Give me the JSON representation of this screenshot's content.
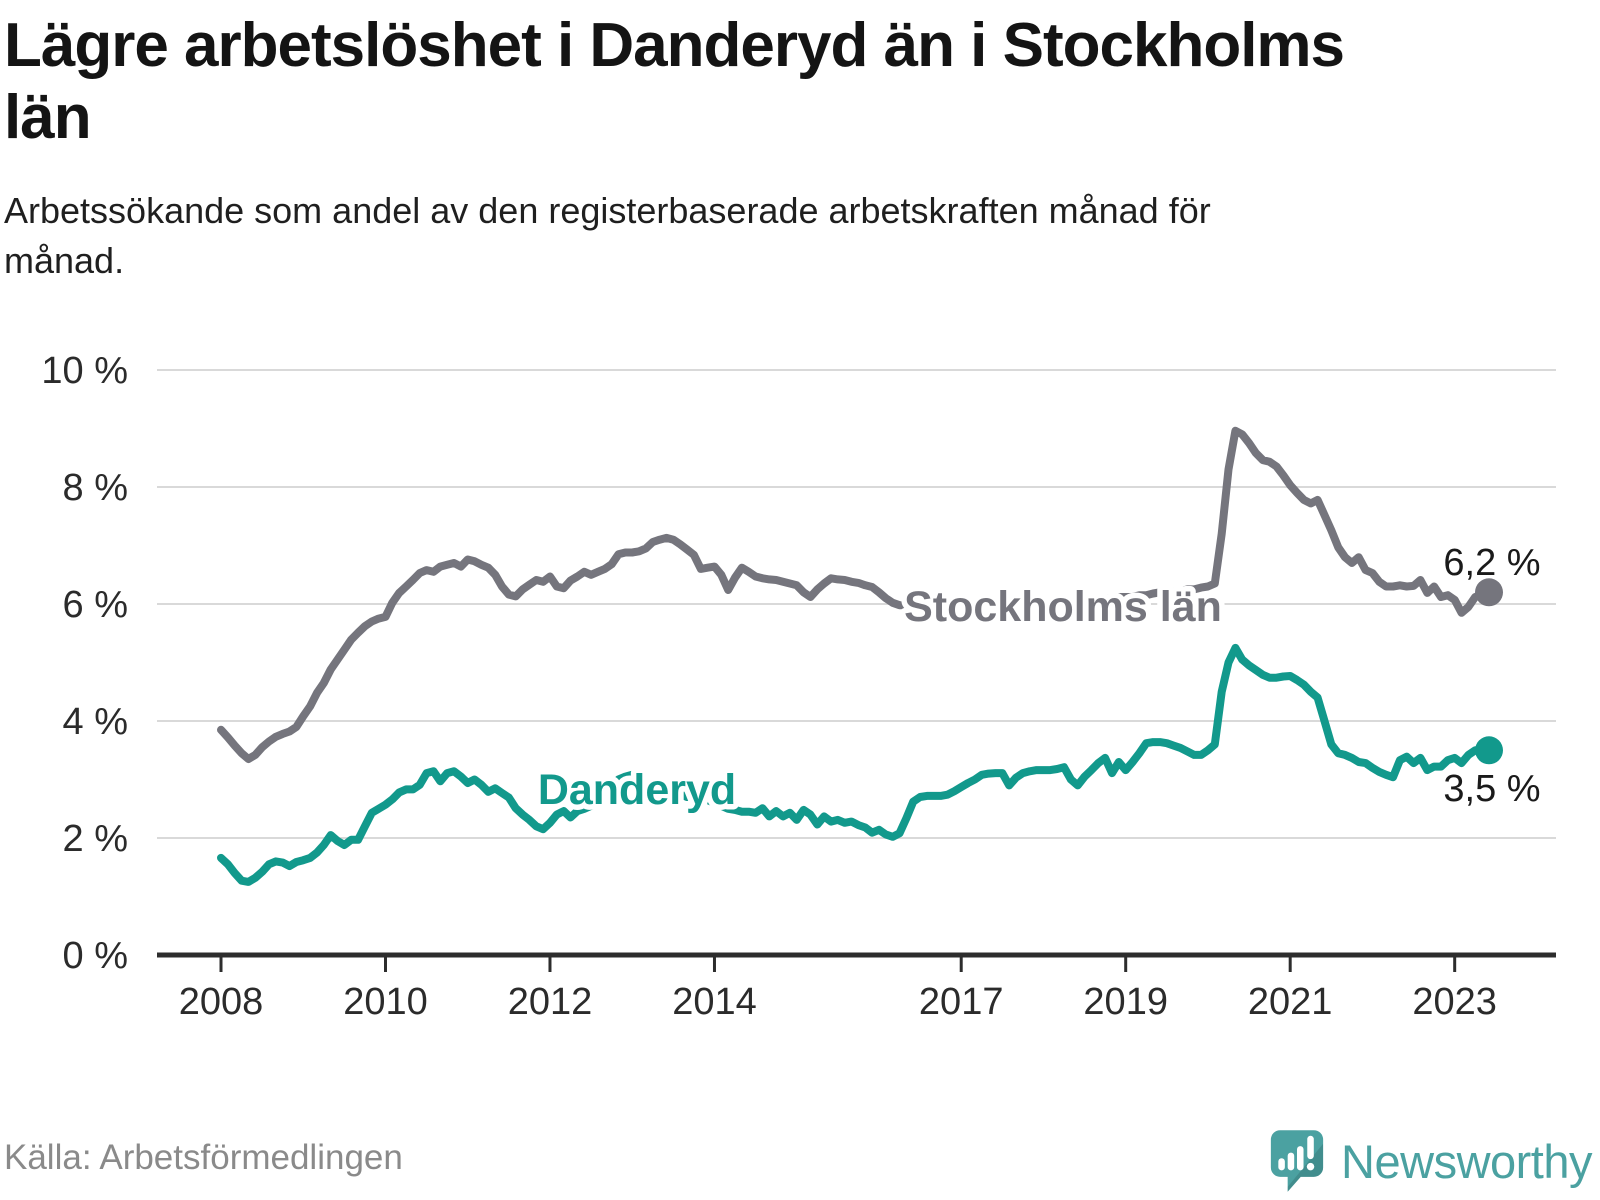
{
  "header": {
    "title": "Lägre arbetslöshet i Danderyd än i Stockholms län",
    "subtitle": "Arbetssökande som andel av den registerbaserade arbetskraften månad för månad."
  },
  "footer": {
    "source": "Källa: Arbetsförmedlingen",
    "brand": "Newsworthy"
  },
  "chart_data": {
    "type": "line",
    "title": "Lägre arbetslöshet i Danderyd än i Stockholms län",
    "x_unit": "month",
    "x_range": [
      "2008-01",
      "2023-06"
    ],
    "x_tick_years": [
      2008,
      2010,
      2012,
      2014,
      2017,
      2019,
      2021,
      2023
    ],
    "x_tick_labels": [
      "2008",
      "2010",
      "2012",
      "2014",
      "2017",
      "2019",
      "2021",
      "2023"
    ],
    "y_ticks": [
      10,
      8,
      6,
      4,
      2,
      0
    ],
    "y_tick_labels": [
      "10 %",
      "8 %",
      "6 %",
      "4 %",
      "2 %",
      "0 %"
    ],
    "ylim": [
      0,
      10
    ],
    "grid": true,
    "series": [
      {
        "name": "Stockholms län",
        "color": "#75757d",
        "end_label": "6,2 %",
        "end_value": 6.2,
        "values": [
          3.85,
          3.72,
          3.58,
          3.45,
          3.35,
          3.42,
          3.55,
          3.65,
          3.73,
          3.78,
          3.82,
          3.9,
          4.08,
          4.25,
          4.48,
          4.65,
          4.88,
          5.05,
          5.22,
          5.39,
          5.51,
          5.62,
          5.7,
          5.75,
          5.78,
          6.02,
          6.19,
          6.3,
          6.41,
          6.53,
          6.58,
          6.55,
          6.64,
          6.67,
          6.7,
          6.64,
          6.76,
          6.73,
          6.67,
          6.62,
          6.5,
          6.3,
          6.16,
          6.13,
          6.25,
          6.33,
          6.41,
          6.38,
          6.47,
          6.3,
          6.27,
          6.4,
          6.47,
          6.55,
          6.5,
          6.55,
          6.6,
          6.68,
          6.85,
          6.88,
          6.88,
          6.9,
          6.95,
          7.06,
          7.1,
          7.13,
          7.1,
          7.02,
          6.93,
          6.84,
          6.6,
          6.62,
          6.64,
          6.5,
          6.24,
          6.45,
          6.62,
          6.55,
          6.47,
          6.44,
          6.42,
          6.41,
          6.38,
          6.35,
          6.32,
          6.2,
          6.12,
          6.25,
          6.35,
          6.44,
          6.42,
          6.41,
          6.38,
          6.36,
          6.32,
          6.29,
          6.2,
          6.1,
          6.02,
          5.98,
          5.98,
          6.0,
          6.0,
          6.02,
          6.0,
          6.0,
          6.0,
          6.0,
          6.0,
          5.98,
          5.98,
          6.0,
          6.02,
          6.05,
          6.05,
          6.02,
          6.0,
          6.02,
          6.05,
          6.05,
          6.05,
          6.02,
          6.0,
          5.98,
          5.98,
          6.0,
          6.02,
          6.05,
          6.08,
          6.1,
          6.1,
          6.12,
          6.12,
          6.12,
          6.15,
          6.15,
          6.18,
          6.2,
          6.2,
          6.22,
          6.22,
          6.25,
          6.25,
          6.28,
          6.3,
          6.35,
          7.2,
          8.3,
          8.96,
          8.9,
          8.75,
          8.58,
          8.46,
          8.43,
          8.35,
          8.2,
          8.03,
          7.9,
          7.78,
          7.72,
          7.78,
          7.52,
          7.26,
          6.97,
          6.8,
          6.7,
          6.8,
          6.58,
          6.53,
          6.38,
          6.3,
          6.3,
          6.32,
          6.3,
          6.31,
          6.41,
          6.19,
          6.3,
          6.12,
          6.15,
          6.07,
          5.85,
          5.95,
          6.12,
          6.15,
          6.2
        ]
      },
      {
        "name": "Danderyd",
        "color": "#12998c",
        "end_label": "3,5 %",
        "end_value": 3.5,
        "values": [
          1.66,
          1.55,
          1.4,
          1.27,
          1.25,
          1.32,
          1.42,
          1.55,
          1.6,
          1.58,
          1.52,
          1.59,
          1.62,
          1.66,
          1.75,
          1.88,
          2.05,
          1.95,
          1.88,
          1.97,
          1.97,
          2.2,
          2.43,
          2.5,
          2.57,
          2.66,
          2.78,
          2.83,
          2.83,
          2.91,
          3.11,
          3.14,
          2.97,
          3.11,
          3.14,
          3.05,
          2.94,
          3.0,
          2.91,
          2.79,
          2.85,
          2.77,
          2.69,
          2.51,
          2.4,
          2.31,
          2.2,
          2.15,
          2.26,
          2.4,
          2.46,
          2.35,
          2.46,
          2.5,
          2.55,
          2.62,
          2.77,
          2.9,
          3.0,
          3.05,
          3.08,
          3.0,
          2.9,
          2.85,
          2.8,
          2.85,
          2.8,
          2.75,
          2.7,
          2.72,
          2.68,
          2.65,
          2.6,
          2.55,
          2.5,
          2.48,
          2.45,
          2.45,
          2.43,
          2.51,
          2.37,
          2.46,
          2.37,
          2.43,
          2.31,
          2.48,
          2.4,
          2.23,
          2.37,
          2.28,
          2.31,
          2.26,
          2.28,
          2.22,
          2.18,
          2.09,
          2.14,
          2.06,
          2.02,
          2.08,
          2.34,
          2.62,
          2.7,
          2.72,
          2.72,
          2.72,
          2.74,
          2.8,
          2.87,
          2.94,
          3.0,
          3.08,
          3.1,
          3.11,
          3.11,
          2.9,
          3.03,
          3.11,
          3.14,
          3.16,
          3.16,
          3.16,
          3.18,
          3.21,
          3.0,
          2.9,
          3.05,
          3.16,
          3.28,
          3.37,
          3.11,
          3.3,
          3.16,
          3.3,
          3.45,
          3.62,
          3.64,
          3.64,
          3.62,
          3.58,
          3.54,
          3.48,
          3.42,
          3.42,
          3.5,
          3.6,
          4.5,
          5.0,
          5.25,
          5.05,
          4.95,
          4.87,
          4.79,
          4.74,
          4.74,
          4.76,
          4.77,
          4.7,
          4.62,
          4.5,
          4.4,
          4.0,
          3.6,
          3.45,
          3.42,
          3.37,
          3.3,
          3.28,
          3.2,
          3.13,
          3.08,
          3.04,
          3.33,
          3.39,
          3.28,
          3.37,
          3.16,
          3.22,
          3.22,
          3.33,
          3.37,
          3.28,
          3.42,
          3.5,
          3.52,
          3.5
        ]
      }
    ]
  }
}
